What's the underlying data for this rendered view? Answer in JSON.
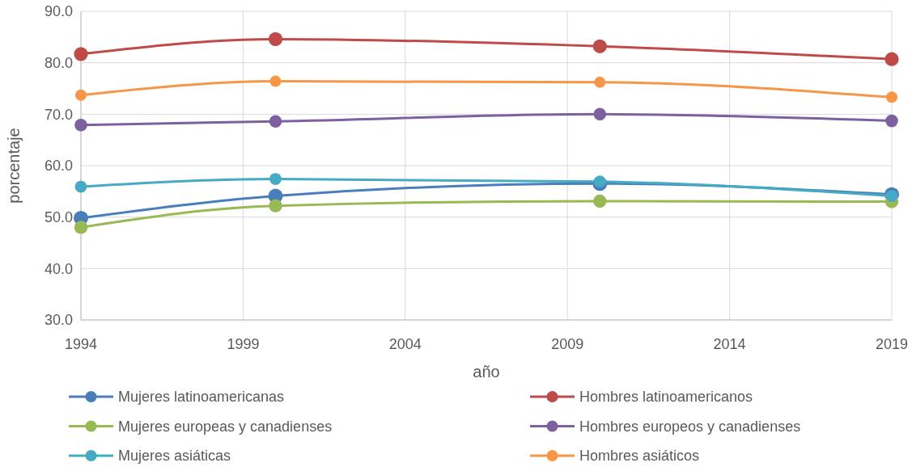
{
  "chart_data": {
    "type": "line",
    "xlabel": "año",
    "ylabel": "porcentaje",
    "x": [
      1994,
      2000,
      2010,
      2019
    ],
    "xlim": [
      1994,
      2019
    ],
    "xticks": [
      1994,
      1999,
      2004,
      2009,
      2014,
      2019
    ],
    "ylim": [
      30,
      90
    ],
    "yticks": [
      {
        "value": 30,
        "label": "30.0"
      },
      {
        "value": 40,
        "label": "40.0"
      },
      {
        "value": 50,
        "label": "50.0"
      },
      {
        "value": 60,
        "label": "60.0"
      },
      {
        "value": 70,
        "label": "70.0"
      },
      {
        "value": 80,
        "label": "80.0"
      },
      {
        "value": 90,
        "label": "90.0"
      }
    ],
    "grid": true,
    "legend": "bottom",
    "marker": "circle",
    "line_style": "solid",
    "series": [
      {
        "name": "Mujeres latinoamericanas",
        "color": "#4a7ebb",
        "values": [
          49.8,
          54.1,
          56.5,
          54.4
        ]
      },
      {
        "name": "Hombres latinoamericanos",
        "color": "#be4b48",
        "values": [
          81.7,
          84.6,
          83.2,
          80.7
        ]
      },
      {
        "name": "Mujeres europeas y canadienses",
        "color": "#98b954",
        "values": [
          48.0,
          52.2,
          53.1,
          53.0
        ]
      },
      {
        "name": "Hombres europeos y canadienses",
        "color": "#7d60a0",
        "values": [
          67.9,
          68.6,
          70.0,
          68.7
        ]
      },
      {
        "name": "Mujeres asiáticas",
        "color": "#46aac5",
        "values": [
          55.9,
          57.4,
          56.9,
          54.1
        ]
      },
      {
        "name": "Hombres asiáticos",
        "color": "#f79646",
        "values": [
          73.7,
          76.4,
          76.2,
          73.3
        ]
      }
    ]
  }
}
